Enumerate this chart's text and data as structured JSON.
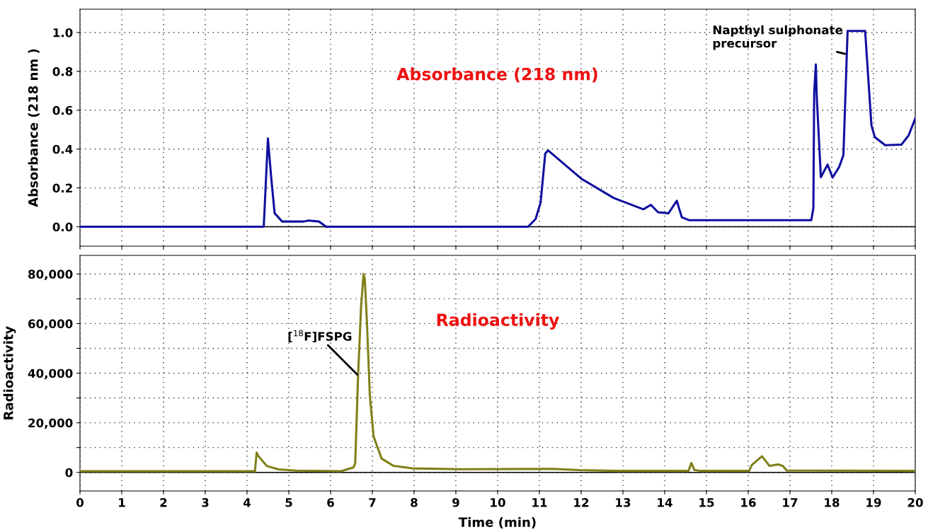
{
  "chart_data": [
    {
      "type": "line",
      "ylabel": "Absorbance (218 nm )",
      "xlim": [
        0,
        20
      ],
      "xticks": [
        {
          "value": 0,
          "label": null
        },
        {
          "value": 1,
          "label": null
        },
        {
          "value": 2,
          "label": null
        },
        {
          "value": 3,
          "label": null
        },
        {
          "value": 4,
          "label": null
        },
        {
          "value": 5,
          "label": null
        },
        {
          "value": 6,
          "label": null
        },
        {
          "value": 7,
          "label": null
        },
        {
          "value": 8,
          "label": null
        },
        {
          "value": 9,
          "label": null
        },
        {
          "value": 10,
          "label": null
        },
        {
          "value": 11,
          "label": null
        },
        {
          "value": 12,
          "label": null
        },
        {
          "value": 13,
          "label": null
        },
        {
          "value": 14,
          "label": null
        },
        {
          "value": 15,
          "label": null
        },
        {
          "value": 16,
          "label": null
        },
        {
          "value": 17,
          "label": null
        },
        {
          "value": 18,
          "label": null
        },
        {
          "value": 19,
          "label": null
        },
        {
          "value": 20,
          "label": null
        }
      ],
      "ylim": [
        -0.1,
        1.12
      ],
      "yticks": [
        {
          "value": 0,
          "label": "0.0"
        },
        {
          "value": 0.2,
          "label": "0.2"
        },
        {
          "value": 0.4,
          "label": "0.4"
        },
        {
          "value": 0.6,
          "label": "0.6"
        },
        {
          "value": 0.8,
          "label": "0.8"
        },
        {
          "value": 1,
          "label": "1.0"
        }
      ],
      "grid": true,
      "tick_labels": "y",
      "line_style": "solid",
      "marker": "none",
      "ref_lines": [
        {
          "axis": "y",
          "value": 0,
          "color": "#000000"
        }
      ],
      "annotations": [
        "Absorbance (218 nm)",
        {
          "text": "Napthyl sulphonate\nprecursor",
          "x": 18.32,
          "y": 0.89
        }
      ],
      "series": [
        {
          "color": "#1010a0",
          "x": [
            0,
            4.4,
            4.5,
            4.58,
            4.66,
            4.84,
            5.36,
            5.47,
            5.72,
            5.82,
            5.89,
            10.73,
            10.91,
            11.03,
            11.14,
            11.21,
            12.0,
            12.78,
            13.49,
            13.67,
            13.84,
            14.09,
            14.29,
            14.41,
            14.58,
            17.51,
            17.56,
            17.58,
            17.62,
            17.64,
            17.74,
            17.9,
            18.02,
            18.18,
            18.28,
            18.38,
            18.8,
            18.95,
            19.03,
            19.28,
            19.67,
            19.84,
            20.0
          ],
          "values": [
            0,
            0,
            0.454,
            0.25,
            0.07,
            0.027,
            0.027,
            0.032,
            0.027,
            0.012,
            0,
            0,
            0.04,
            0.125,
            0.377,
            0.393,
            0.248,
            0.148,
            0.09,
            0.113,
            0.075,
            0.069,
            0.134,
            0.049,
            0.034,
            0.034,
            0.095,
            0.69,
            0.836,
            0.676,
            0.255,
            0.32,
            0.253,
            0.309,
            0.37,
            1.008,
            1.008,
            0.523,
            0.462,
            0.42,
            0.423,
            0.47,
            0.557
          ]
        }
      ]
    },
    {
      "type": "line",
      "xlabel": "Time (min)",
      "ylabel": "Radioactivity",
      "xlim": [
        0,
        20
      ],
      "xticks": [
        0,
        1,
        2,
        3,
        4,
        5,
        6,
        7,
        8,
        9,
        10,
        11,
        12,
        13,
        14,
        15,
        16,
        17,
        18,
        19,
        20
      ],
      "ylim": [
        -7500,
        87500
      ],
      "yticks": [
        {
          "value": 0,
          "label": "0"
        },
        {
          "value": 10000,
          "label": null
        },
        {
          "value": 20000,
          "label": "20,000"
        },
        {
          "value": 30000,
          "label": null
        },
        {
          "value": 40000,
          "label": "40,000"
        },
        {
          "value": 50000,
          "label": null
        },
        {
          "value": 60000,
          "label": "60,000"
        },
        {
          "value": 70000,
          "label": null
        },
        {
          "value": 80000,
          "label": "80,000"
        }
      ],
      "grid": true,
      "line_style": "solid",
      "marker": "none",
      "ref_lines": [
        {
          "axis": "y",
          "value": 0,
          "color": "#000000"
        }
      ],
      "annotations": [
        "Radioactivity",
        {
          "text": "[$^{18}$F]FSPG",
          "x": 6.64,
          "y": 39400
        }
      ],
      "series": [
        {
          "color": "#80801a",
          "x": [
            0,
            4.19,
            4.23,
            4.26,
            4.47,
            4.75,
            5.18,
            6.25,
            6.55,
            6.59,
            6.66,
            6.73,
            6.79,
            6.82,
            6.87,
            6.94,
            7.03,
            7.22,
            7.51,
            7.96,
            9.13,
            11.32,
            11.96,
            12.87,
            14.57,
            14.64,
            14.71,
            14.85,
            16.02,
            16.09,
            16.33,
            16.51,
            16.72,
            16.83,
            16.92,
            20.0
          ],
          "values": [
            500,
            500,
            8000,
            6800,
            2600,
            1200,
            700,
            500,
            2000,
            3800,
            39400,
            66700,
            80000,
            78000,
            60800,
            31100,
            14500,
            5600,
            2600,
            1600,
            1300,
            1400,
            900,
            600,
            600,
            3800,
            1000,
            600,
            600,
            3000,
            6500,
            2600,
            3200,
            2600,
            800,
            600
          ]
        }
      ]
    }
  ]
}
